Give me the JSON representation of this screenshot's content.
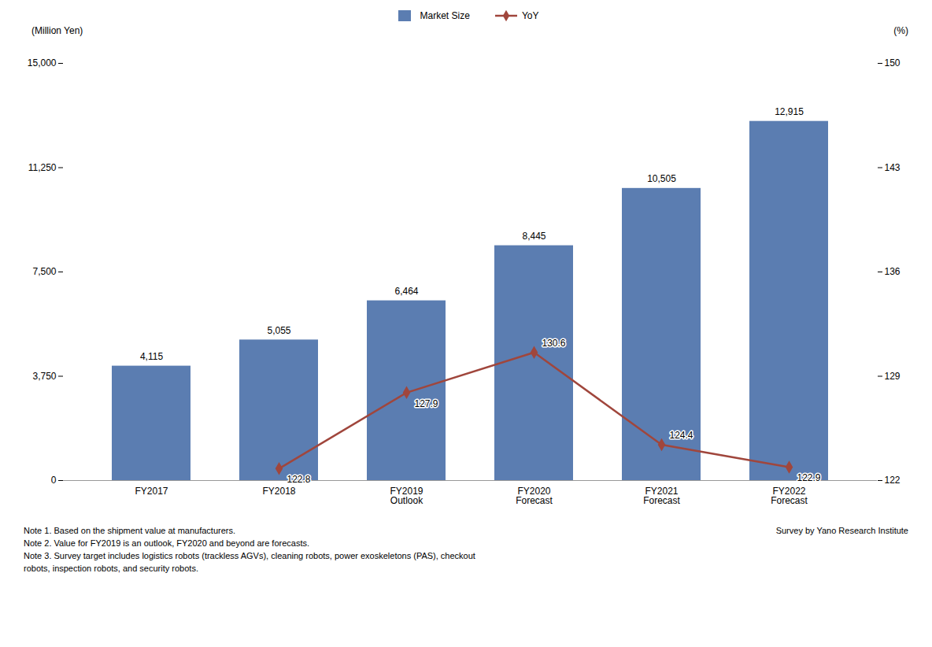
{
  "chart_data": {
    "type": "bar",
    "categories": [
      "FY2017",
      "FY2018",
      "FY2019\nOutlook",
      "FY2020\nForecast",
      "FY2021\nForecast",
      "FY2022\nForecast"
    ],
    "series": [
      {
        "name": "Market Size",
        "type": "bar",
        "color": "#5B7DB1",
        "values": [
          4115,
          5055,
          6464,
          8445,
          10505,
          12915
        ],
        "value_labels": [
          "4,115",
          "5,055",
          "6,464",
          "8,445",
          "10,505",
          "12,915"
        ]
      },
      {
        "name": "YoY",
        "type": "line",
        "axis": "y2",
        "color": "#A0463C",
        "marker": "diamond",
        "values": [
          null,
          122.8,
          127.9,
          130.6,
          124.4,
          122.9
        ]
      }
    ],
    "ylabel": "(Million Yen)",
    "y2label": "(%)",
    "ylim": [
      0,
      15000
    ],
    "yticks": [
      0,
      {
        "value": 3750,
        "label": "3,750"
      },
      {
        "value": 7500,
        "label": "7,500"
      },
      {
        "value": 11250,
        "label": "11,250"
      },
      {
        "value": 15000,
        "label": "15,000"
      }
    ],
    "y2lim": [
      122,
      150
    ],
    "y2ticks": [
      122,
      129,
      136,
      143,
      150
    ],
    "annotations": [
      "Note 1. Based on the shipment value at manufacturers.",
      "Survey by Yano Research Institute",
      "Note 2. Value for FY2019 is an outlook, FY2020 and beyond are forecasts.",
      "Note 3. Survey target includes logistics robots (trackless AGVs), cleaning robots, power exoskeletons (PAS), checkout\nrobots, inspection robots, and security robots."
    ],
    "data_labels": true,
    "legend": "top",
    "grid": false
  }
}
